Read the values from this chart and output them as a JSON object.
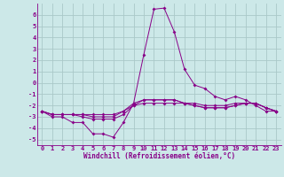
{
  "xlabel": "Windchill (Refroidissement éolien,°C)",
  "background_color": "#cce8e8",
  "grid_color": "#aac8c8",
  "line_color": "#880088",
  "x": [
    0,
    1,
    2,
    3,
    4,
    5,
    6,
    7,
    8,
    9,
    10,
    11,
    12,
    13,
    14,
    15,
    16,
    17,
    18,
    19,
    20,
    21,
    22,
    23
  ],
  "series1": [
    -2.5,
    -3.0,
    -3.0,
    -3.5,
    -3.5,
    -4.5,
    -4.5,
    -4.8,
    -3.5,
    -1.8,
    2.5,
    6.5,
    6.6,
    4.5,
    1.2,
    -0.2,
    -0.5,
    -1.2,
    -1.5,
    -1.2,
    -1.5,
    -2.0,
    -2.5,
    -2.5
  ],
  "series2": [
    -2.5,
    -2.8,
    -2.8,
    -2.8,
    -3.0,
    -3.2,
    -3.2,
    -3.2,
    -2.8,
    -2.0,
    -1.5,
    -1.5,
    -1.5,
    -1.5,
    -1.8,
    -2.0,
    -2.2,
    -2.2,
    -2.2,
    -2.0,
    -1.8,
    -1.8,
    -2.2,
    -2.5
  ],
  "series3": [
    -2.5,
    -2.8,
    -2.8,
    -2.8,
    -2.8,
    -3.0,
    -3.0,
    -3.0,
    -2.5,
    -2.0,
    -1.8,
    -1.8,
    -1.8,
    -1.8,
    -1.8,
    -2.0,
    -2.2,
    -2.2,
    -2.2,
    -2.0,
    -1.8,
    -1.8,
    -2.2,
    -2.5
  ],
  "series4": [
    -2.5,
    -2.8,
    -2.8,
    -2.8,
    -2.8,
    -2.8,
    -2.8,
    -2.8,
    -2.5,
    -1.8,
    -1.5,
    -1.5,
    -1.5,
    -1.5,
    -1.8,
    -1.8,
    -2.0,
    -2.0,
    -2.0,
    -1.8,
    -1.8,
    -1.8,
    -2.2,
    -2.5
  ],
  "ylim": [
    -5.5,
    7.0
  ],
  "xlim": [
    -0.5,
    23.5
  ],
  "yticks": [
    -5,
    -4,
    -3,
    -2,
    -1,
    0,
    1,
    2,
    3,
    4,
    5,
    6
  ],
  "xticks": [
    0,
    1,
    2,
    3,
    4,
    5,
    6,
    7,
    8,
    9,
    10,
    11,
    12,
    13,
    14,
    15,
    16,
    17,
    18,
    19,
    20,
    21,
    22,
    23
  ]
}
